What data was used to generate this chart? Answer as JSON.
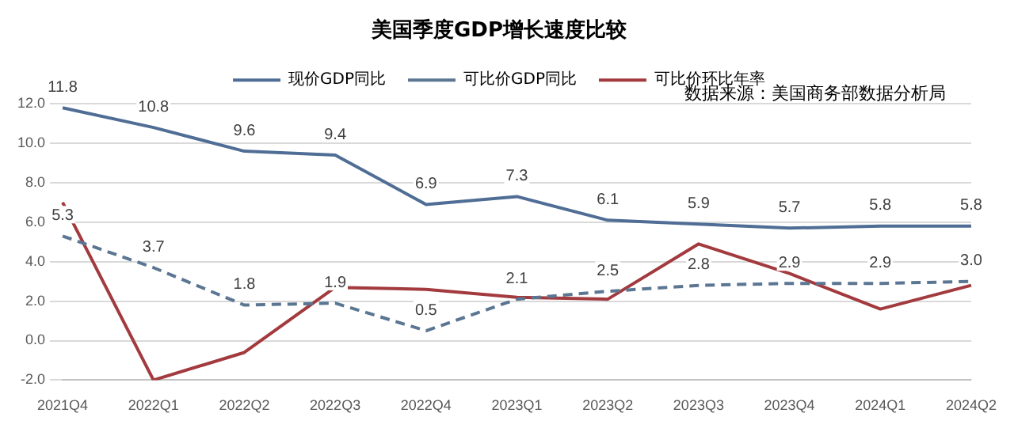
{
  "chart_data": {
    "type": "line",
    "title": "美国季度GDP增长速度比较",
    "categories": [
      "2021Q4",
      "2022Q1",
      "2022Q2",
      "2022Q3",
      "2022Q4",
      "2023Q1",
      "2023Q2",
      "2023Q3",
      "2023Q4",
      "2024Q1",
      "2024Q2"
    ],
    "series": [
      {
        "name": "现价GDP同比",
        "color": "#4f6d95",
        "line_style": "solid",
        "values": [
          11.8,
          10.8,
          9.6,
          9.4,
          6.9,
          7.3,
          6.1,
          5.9,
          5.7,
          5.8,
          5.8
        ],
        "value_labels": [
          "11.8",
          "10.8",
          "9.6",
          "9.4",
          "6.9",
          "7.3",
          "6.1",
          "5.9",
          "5.7",
          "5.8",
          "5.8"
        ]
      },
      {
        "name": "可比价GDP同比",
        "color": "#5b7692",
        "line_style": "dashed",
        "values": [
          5.3,
          3.7,
          1.8,
          1.9,
          0.5,
          2.1,
          2.5,
          2.8,
          2.9,
          2.9,
          3.0
        ],
        "value_labels": [
          "5.3",
          "3.7",
          "1.8",
          "1.9",
          "0.5",
          "2.1",
          "2.5",
          "2.8",
          "2.9",
          "2.9",
          "3.0"
        ]
      },
      {
        "name": "可比价环比年率",
        "color": "#a23a3e",
        "line_style": "solid",
        "values": [
          7.0,
          -2.0,
          -0.6,
          2.7,
          2.6,
          2.2,
          2.1,
          4.9,
          3.4,
          1.6,
          2.8
        ]
      }
    ],
    "ylim": [
      -2,
      12
    ],
    "yticks": [
      {
        "value": -2,
        "label": "-2.0"
      },
      {
        "value": 0,
        "label": "0.0"
      },
      {
        "value": 2,
        "label": "2.0"
      },
      {
        "value": 4,
        "label": "4.0"
      },
      {
        "value": 6,
        "label": "6.0"
      },
      {
        "value": 8,
        "label": "8.0"
      },
      {
        "value": 10,
        "label": "10.0"
      },
      {
        "value": 12,
        "label": "12.0"
      }
    ],
    "grid": "y",
    "legend": "top",
    "marker": "none",
    "annotations": [
      "数据来源：美国商务部数据分析局"
    ]
  }
}
